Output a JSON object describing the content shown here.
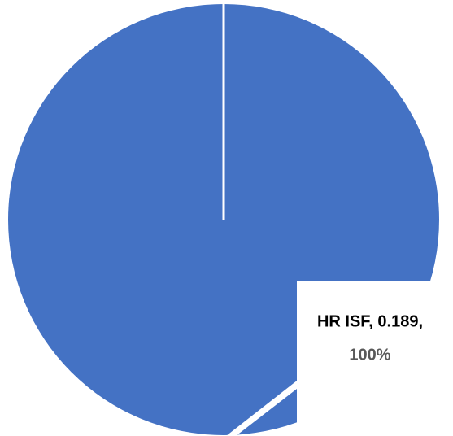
{
  "chart_data": {
    "type": "pie",
    "categories": [
      "HR ISF"
    ],
    "values": [
      0.189
    ],
    "value_labels": [
      "HR ISF, 0.189,"
    ],
    "percents": [
      100
    ],
    "percent_labels": [
      "100%"
    ],
    "colors": [
      "#4472c4"
    ]
  }
}
